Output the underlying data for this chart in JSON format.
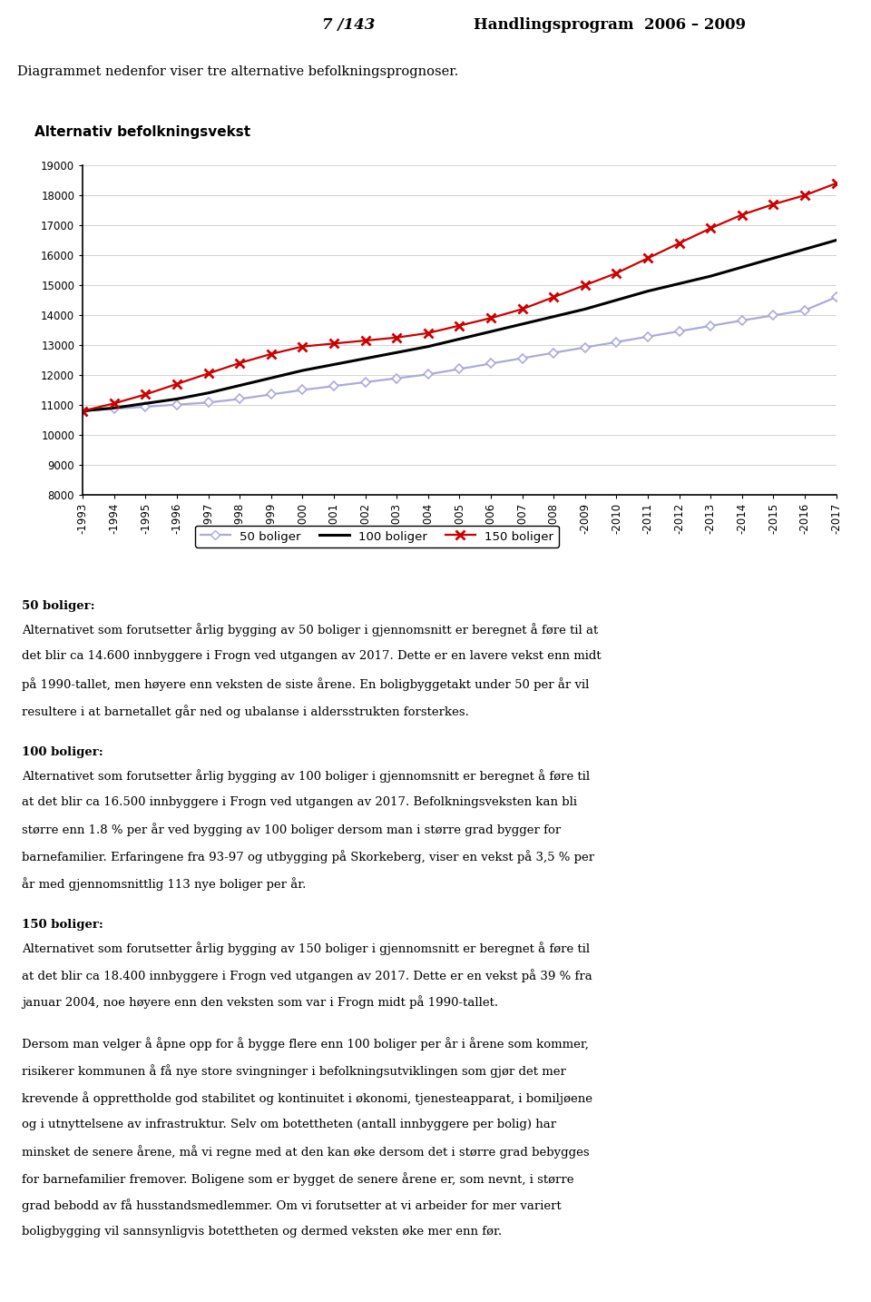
{
  "title": "Alternativ befolkningsvekst",
  "header_left": "7 /143",
  "header_right": "Handlingsprogram  2006 – 2009",
  "intro_text": "Diagrammet nedenfor viser tre alternative befolkningsprognoser.",
  "years": [
    1993,
    1994,
    1995,
    1996,
    1997,
    1998,
    1999,
    2000,
    2001,
    2002,
    2003,
    2004,
    2005,
    2006,
    2007,
    2008,
    2009,
    2010,
    2011,
    2012,
    2013,
    2014,
    2015,
    2016,
    2017
  ],
  "series_50": [
    10800,
    10870,
    10940,
    11010,
    11080,
    11200,
    11350,
    11500,
    11630,
    11760,
    11890,
    12020,
    12200,
    12380,
    12560,
    12740,
    12920,
    13100,
    13280,
    13460,
    13640,
    13820,
    13990,
    14160,
    14600
  ],
  "series_100": [
    10800,
    10900,
    11050,
    11200,
    11400,
    11650,
    11900,
    12150,
    12350,
    12550,
    12750,
    12950,
    13200,
    13450,
    13700,
    13950,
    14200,
    14500,
    14800,
    15050,
    15300,
    15600,
    15900,
    16200,
    16500
  ],
  "series_150": [
    10800,
    11050,
    11350,
    11700,
    12050,
    12400,
    12700,
    12950,
    13050,
    13150,
    13250,
    13400,
    13650,
    13900,
    14200,
    14600,
    15000,
    15400,
    15900,
    16400,
    16900,
    17350,
    17700,
    18000,
    18400
  ],
  "ylim": [
    8000,
    19000
  ],
  "yticks": [
    8000,
    9000,
    10000,
    11000,
    12000,
    13000,
    14000,
    15000,
    16000,
    17000,
    18000,
    19000
  ],
  "color_50": "#aaaadd",
  "color_100": "#000000",
  "color_150": "#cc0000",
  "legend_50": "50 boliger",
  "legend_100": "100 boliger",
  "legend_150": "150 boliger",
  "body_texts": [
    {
      "bold": "50 boliger:",
      "text": "Alternativet som forutsetter årlig bygging av 50 boliger i gjennomsnitt er beregnet å føre til at\ndet blir ca 14.600 innbyggere i Frogn ved utgangen av 2017. Dette er en lavere vekst enn midt\npå 1990-tallet, men høyere enn veksten de siste årene. En boligbyggetakt under 50 per år vil\nresultere i at barnetallet går ned og ubalanse i aldersstrukten forsterkes."
    },
    {
      "bold": "100 boliger:",
      "text": "Alternativet som forutsetter årlig bygging av 100 boliger i gjennomsnitt er beregnet å føre til\nat det blir ca 16.500 innbyggere i Frogn ved utgangen av 2017. Befolkningsveksten kan bli\nstørre enn 1.8 % per år ved bygging av 100 boliger dersom man i større grad bygger for\nbarnefamilier. Erfaringene fra 93-97 og utbygging på Skorkeberg, viser en vekst på 3,5 % per\når med gjennomsnittlig 113 nye boliger per år."
    },
    {
      "bold": "150 boliger:",
      "text": "Alternativet som forutsetter årlig bygging av 150 boliger i gjennomsnitt er beregnet å føre til\nat det blir ca 18.400 innbyggere i Frogn ved utgangen av 2017. Dette er en vekst på 39 % fra\njanuar 2004, noe høyere enn den veksten som var i Frogn midt på 1990-tallet."
    },
    {
      "bold": "",
      "text": "Dersom man velger å åpne opp for å bygge flere enn 100 boliger per år i årene som kommer,\nrisikerer kommunen å få nye store svingninger i befolkningsutviklingen som gjør det mer\nkrevende å opprettholde god stabilitet og kontinuitet i økonomi, tjenesteapparat, i bomiljøene\nog i utnyttelsene av infrastruktur. Selv om botettheten (antall innbyggere per bolig) har\nminsket de senere årene, må vi regne med at den kan øke dersom det i større grad bebygges\nfor barnefamilier fremover. Boligene som er bygget de senere årene er, som nevnt, i større\ngrad bebodd av få husstandsmedlemmer. Om vi forutsetter at vi arbeider for mer variert\nboligbygging vil sannsynligvis botettheten og dermed veksten øke mer enn før."
    }
  ]
}
